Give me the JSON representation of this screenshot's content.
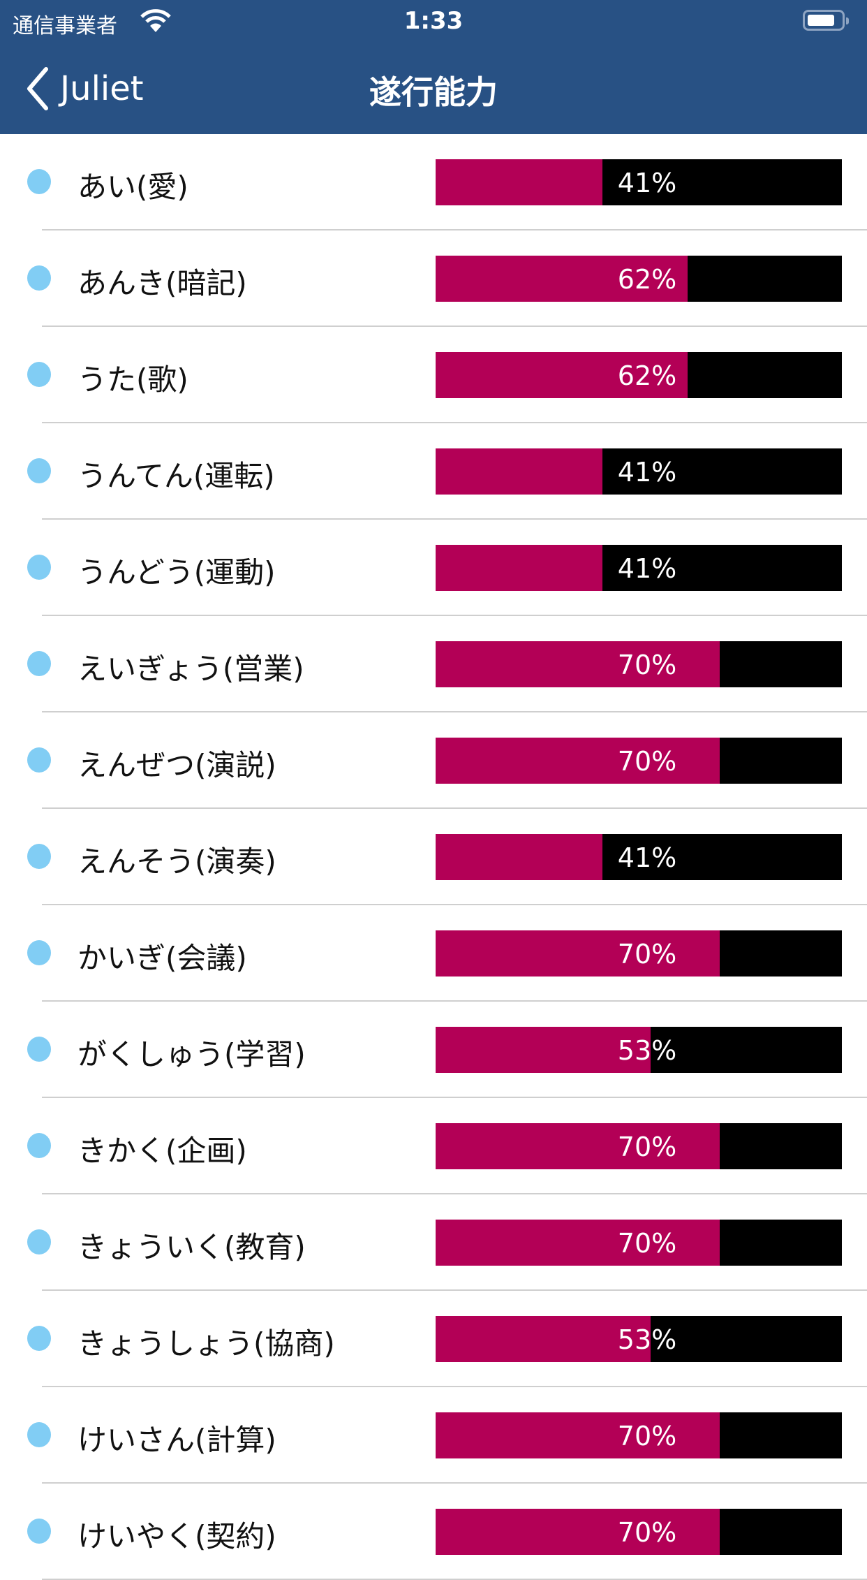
{
  "status_bar": {
    "carrier": "通信事業者",
    "time": "1:33",
    "battery_level": 0.8
  },
  "nav": {
    "back_label": "Juliet",
    "title": "遂行能力"
  },
  "colors": {
    "nav_bg": "#285184",
    "bar_fill": "#b30056",
    "bar_bg": "#000000",
    "dot": "#81cdf4"
  },
  "items": [
    {
      "label": "あい(愛)",
      "percent": 41,
      "percent_text": "41%"
    },
    {
      "label": "あんき(暗記)",
      "percent": 62,
      "percent_text": "62%"
    },
    {
      "label": "うた(歌)",
      "percent": 62,
      "percent_text": "62%"
    },
    {
      "label": "うんてん(運転)",
      "percent": 41,
      "percent_text": "41%"
    },
    {
      "label": "うんどう(運動)",
      "percent": 41,
      "percent_text": "41%"
    },
    {
      "label": "えいぎょう(営業)",
      "percent": 70,
      "percent_text": "70%"
    },
    {
      "label": "えんぜつ(演説)",
      "percent": 70,
      "percent_text": "70%"
    },
    {
      "label": "えんそう(演奏)",
      "percent": 41,
      "percent_text": "41%"
    },
    {
      "label": "かいぎ(会議)",
      "percent": 70,
      "percent_text": "70%"
    },
    {
      "label": "がくしゅう(学習)",
      "percent": 53,
      "percent_text": "53%"
    },
    {
      "label": "きかく(企画)",
      "percent": 70,
      "percent_text": "70%"
    },
    {
      "label": "きょういく(教育)",
      "percent": 70,
      "percent_text": "70%"
    },
    {
      "label": "きょうしょう(協商)",
      "percent": 53,
      "percent_text": "53%"
    },
    {
      "label": "けいさん(計算)",
      "percent": 70,
      "percent_text": "70%"
    },
    {
      "label": "けいやく(契約)",
      "percent": 70,
      "percent_text": "70%"
    }
  ]
}
